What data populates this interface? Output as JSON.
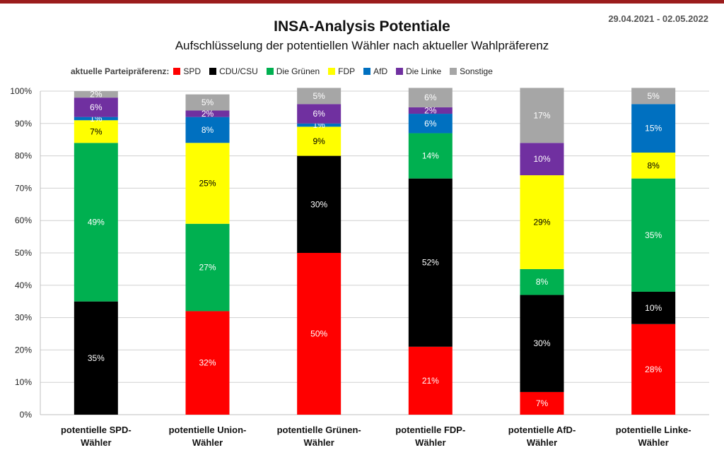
{
  "date_range": "29.04.2021 - 02.05.2022",
  "legend_label": "aktuelle Parteipräferenz:",
  "chart_data": {
    "type": "bar",
    "stacked": true,
    "title": "INSA-Analysis Potentiale",
    "subtitle": "Aufschlüsselung der potentiellen Wähler nach aktueller Wahlpräferenz",
    "ylim": [
      0,
      100
    ],
    "yticks": [
      "0%",
      "10%",
      "20%",
      "30%",
      "40%",
      "50%",
      "60%",
      "70%",
      "80%",
      "90%",
      "100%"
    ],
    "grid": true,
    "legend_position": "top",
    "categories": [
      [
        "potentielle SPD-",
        "Wähler"
      ],
      [
        "potentielle Union-",
        "Wähler"
      ],
      [
        "potentielle Grünen-",
        "Wähler"
      ],
      [
        "potentielle FDP-",
        "Wähler"
      ],
      [
        "potentielle AfD-",
        "Wähler"
      ],
      [
        "potentielle Linke-",
        "Wähler"
      ]
    ],
    "series": [
      {
        "name": "SPD",
        "color": "#ff0000",
        "text_color": "#ffffff",
        "values": [
          0,
          32,
          50,
          21,
          7,
          28
        ],
        "labels": [
          "",
          "32%",
          "50%",
          "21%",
          "7%",
          "28%"
        ]
      },
      {
        "name": "CDU/CSU",
        "color": "#000000",
        "text_color": "#ffffff",
        "values": [
          35,
          0,
          30,
          52,
          30,
          10
        ],
        "labels": [
          "35%",
          "",
          "30%",
          "52%",
          "30%",
          "10%"
        ]
      },
      {
        "name": "Die Grünen",
        "color": "#00b050",
        "text_color": "#ffffff",
        "values": [
          49,
          27,
          0,
          14,
          8,
          35
        ],
        "labels": [
          "49%",
          "27%",
          "",
          "14%",
          "8%",
          "35%"
        ]
      },
      {
        "name": "FDP",
        "color": "#ffff00",
        "text_color": "#000000",
        "values": [
          7,
          25,
          9,
          0,
          29,
          8
        ],
        "labels": [
          "7%",
          "25%",
          "9%",
          "",
          "29%",
          "8%"
        ]
      },
      {
        "name": "AfD",
        "color": "#0070c0",
        "text_color": "#ffffff",
        "values": [
          1,
          8,
          1,
          6,
          0,
          15
        ],
        "labels": [
          "1%",
          "8%",
          "1%",
          "6%",
          "",
          "15%"
        ]
      },
      {
        "name": "Die Linke",
        "color": "#7030a0",
        "text_color": "#ffffff",
        "values": [
          6,
          2,
          6,
          2,
          10,
          0
        ],
        "labels": [
          "6%",
          "2%",
          "6%",
          "2%",
          "10%",
          ""
        ]
      },
      {
        "name": "Sonstige",
        "color": "#a6a6a6",
        "text_color": "#ffffff",
        "values": [
          2,
          5,
          5,
          6,
          17,
          5
        ],
        "labels": [
          "2%",
          "5%",
          "5%",
          "6%",
          "17%",
          "5%"
        ]
      }
    ]
  }
}
